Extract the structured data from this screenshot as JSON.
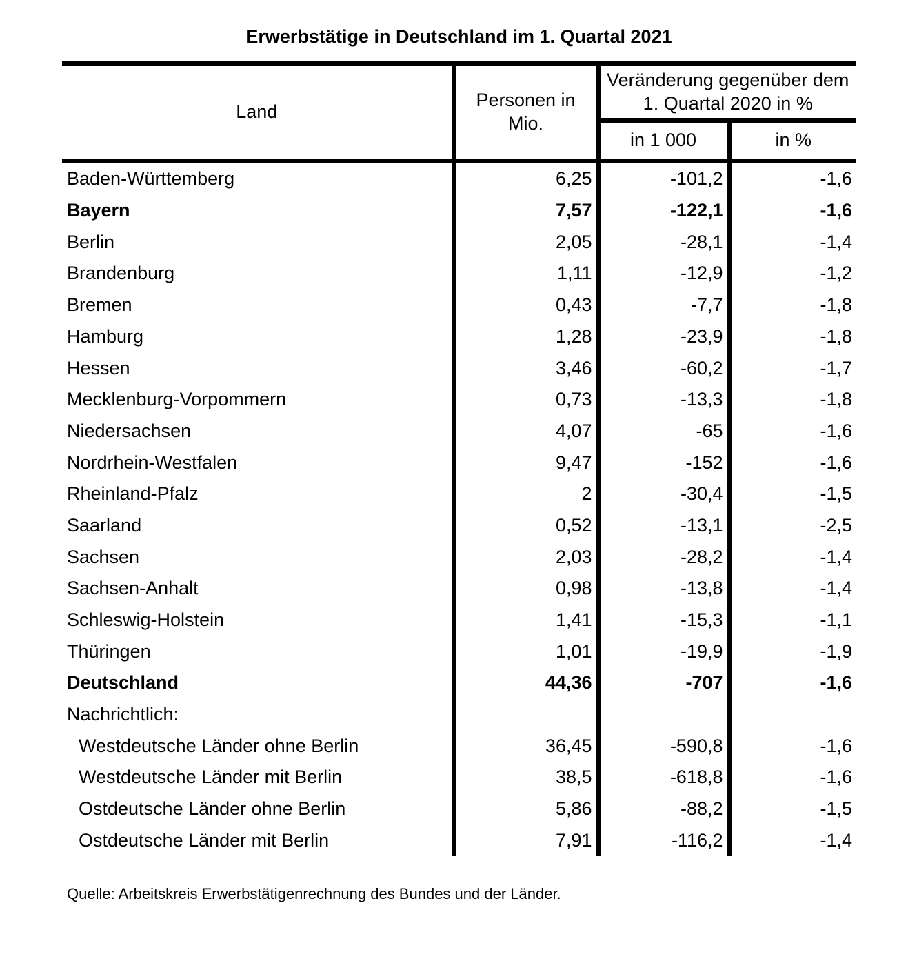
{
  "title": "Erwerbstätige in Deutschland im 1. Quartal 2021",
  "table": {
    "columns": {
      "land": "Land",
      "persons": "Personen in\nMio.",
      "change_group": "Veränderung gegenüber dem\n1. Quartal 2020 in %",
      "change_abs": "in 1 000",
      "change_pct": "in %"
    },
    "rows": [
      {
        "land": "Baden-Württemberg",
        "persons": "6,25",
        "change_abs": "-101,2",
        "change_pct": "-1,6",
        "bold": false,
        "indent": false
      },
      {
        "land": "Bayern",
        "persons": "7,57",
        "change_abs": "-122,1",
        "change_pct": "-1,6",
        "bold": true,
        "indent": false
      },
      {
        "land": "Berlin",
        "persons": "2,05",
        "change_abs": "-28,1",
        "change_pct": "-1,4",
        "bold": false,
        "indent": false
      },
      {
        "land": "Brandenburg",
        "persons": "1,11",
        "change_abs": "-12,9",
        "change_pct": "-1,2",
        "bold": false,
        "indent": false
      },
      {
        "land": "Bremen",
        "persons": "0,43",
        "change_abs": "-7,7",
        "change_pct": "-1,8",
        "bold": false,
        "indent": false
      },
      {
        "land": "Hamburg",
        "persons": "1,28",
        "change_abs": "-23,9",
        "change_pct": "-1,8",
        "bold": false,
        "indent": false
      },
      {
        "land": "Hessen",
        "persons": "3,46",
        "change_abs": "-60,2",
        "change_pct": "-1,7",
        "bold": false,
        "indent": false
      },
      {
        "land": "Mecklenburg-Vorpommern",
        "persons": "0,73",
        "change_abs": "-13,3",
        "change_pct": "-1,8",
        "bold": false,
        "indent": false
      },
      {
        "land": "Niedersachsen",
        "persons": "4,07",
        "change_abs": "-65",
        "change_pct": "-1,6",
        "bold": false,
        "indent": false
      },
      {
        "land": "Nordrhein-Westfalen",
        "persons": "9,47",
        "change_abs": "-152",
        "change_pct": "-1,6",
        "bold": false,
        "indent": false
      },
      {
        "land": "Rheinland-Pfalz",
        "persons": "2",
        "change_abs": "-30,4",
        "change_pct": "-1,5",
        "bold": false,
        "indent": false
      },
      {
        "land": "Saarland",
        "persons": "0,52",
        "change_abs": "-13,1",
        "change_pct": "-2,5",
        "bold": false,
        "indent": false
      },
      {
        "land": "Sachsen",
        "persons": "2,03",
        "change_abs": "-28,2",
        "change_pct": "-1,4",
        "bold": false,
        "indent": false
      },
      {
        "land": "Sachsen-Anhalt",
        "persons": "0,98",
        "change_abs": "-13,8",
        "change_pct": "-1,4",
        "bold": false,
        "indent": false
      },
      {
        "land": "Schleswig-Holstein",
        "persons": "1,41",
        "change_abs": "-15,3",
        "change_pct": "-1,1",
        "bold": false,
        "indent": false
      },
      {
        "land": "Thüringen",
        "persons": "1,01",
        "change_abs": "-19,9",
        "change_pct": "-1,9",
        "bold": false,
        "indent": false
      },
      {
        "land": "Deutschland",
        "persons": "44,36",
        "change_abs": "-707",
        "change_pct": "-1,6",
        "bold": true,
        "indent": false
      },
      {
        "land": "Nachrichtlich:",
        "persons": "",
        "change_abs": "",
        "change_pct": "",
        "bold": false,
        "indent": false
      },
      {
        "land": "Westdeutsche Länder ohne Berlin",
        "persons": "36,45",
        "change_abs": "-590,8",
        "change_pct": "-1,6",
        "bold": false,
        "indent": true
      },
      {
        "land": "Westdeutsche Länder mit Berlin",
        "persons": "38,5",
        "change_abs": "-618,8",
        "change_pct": "-1,6",
        "bold": false,
        "indent": true
      },
      {
        "land": "Ostdeutsche Länder ohne Berlin",
        "persons": "5,86",
        "change_abs": "-88,2",
        "change_pct": "-1,5",
        "bold": false,
        "indent": true
      },
      {
        "land": "Ostdeutsche Länder mit Berlin",
        "persons": "7,91",
        "change_abs": "-116,2",
        "change_pct": "-1,4",
        "bold": false,
        "indent": true
      }
    ]
  },
  "source": "Quelle: Arbeitskreis Erwerbstätigenrechnung des Bundes und der Länder.",
  "colors": {
    "text": "#000000",
    "background": "#ffffff",
    "border": "#000000"
  }
}
